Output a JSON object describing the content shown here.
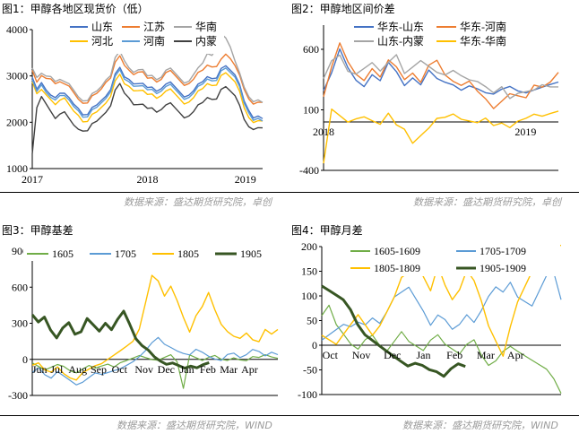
{
  "panels": [
    {
      "title": "图1：甲醇各地区现货价（低）",
      "source": "数据来源：盛达期货研究院，卓创"
    },
    {
      "title": "图2：甲醇地区间价差",
      "source": "数据来源：盛达期货研究院，卓创"
    },
    {
      "title": "图3：甲醇基差",
      "source": "数据来源：盛达期货研究院，WIND"
    },
    {
      "title": "图4：甲醇月差",
      "source": "数据来源：盛达期货研究院，WIND"
    }
  ],
  "chart_data": [
    {
      "type": "line",
      "ylim": [
        1000,
        4000
      ],
      "yticks": [
        "1000",
        "2000",
        "3000",
        "4000"
      ],
      "xticks": [
        {
          "label": "2017",
          "t": 0
        },
        {
          "label": "2018",
          "t": 0.5
        },
        {
          "label": "2019",
          "t": 0.925
        }
      ],
      "legend": [
        "山东",
        "江苏",
        "华南",
        "河北",
        "河南",
        "内蒙"
      ],
      "legend_placement": "top",
      "series": [
        {
          "name": "山东",
          "color": "#4472c4",
          "values": [
            2950,
            2700,
            2850,
            2700,
            2600,
            2550,
            2650,
            2650,
            2550,
            2400,
            2300,
            2150,
            2150,
            2300,
            2350,
            2450,
            2550,
            2700,
            3050,
            3200,
            3000,
            2950,
            2850,
            2850,
            2850,
            2750,
            2750,
            2650,
            2700,
            2800,
            2850,
            2750,
            2650,
            2550,
            2600,
            2700,
            2850,
            2900,
            3000,
            2950,
            2950,
            3150,
            3200,
            3100,
            3000,
            2800,
            2450,
            2250,
            2100,
            2150,
            2100
          ]
        },
        {
          "name": "江苏",
          "color": "#ed7d31",
          "values": [
            3100,
            2850,
            3000,
            2950,
            2950,
            2850,
            2900,
            2850,
            2800,
            2650,
            2500,
            2400,
            2400,
            2550,
            2600,
            2700,
            2850,
            2950,
            3300,
            3450,
            3250,
            3150,
            3050,
            3100,
            3100,
            2950,
            2950,
            2850,
            2900,
            3050,
            3100,
            3000,
            2900,
            2800,
            2850,
            2950,
            3100,
            3150,
            3250,
            3200,
            3200,
            3350,
            3450,
            3350,
            3200,
            3000,
            2700,
            2500,
            2400,
            2450,
            2450
          ]
        },
        {
          "name": "华南",
          "color": "#a5a5a5",
          "values": [
            3150,
            2950,
            3050,
            3000,
            3000,
            2900,
            2950,
            2900,
            2850,
            2700,
            2550,
            2450,
            2450,
            2600,
            2650,
            2750,
            2900,
            3000,
            3400,
            3550,
            3350,
            3200,
            3100,
            3150,
            3150,
            3000,
            3000,
            2900,
            2950,
            3100,
            3150,
            3050,
            2950,
            2850,
            2900,
            3050,
            3200,
            3300,
            3500,
            3450,
            3600,
            3900,
            3800,
            3600,
            3300,
            3050,
            2750,
            2550,
            2450,
            2500,
            2450
          ]
        },
        {
          "name": "河北",
          "color": "#ffc000",
          "values": [
            2850,
            2600,
            2700,
            2600,
            2500,
            2400,
            2500,
            2550,
            2400,
            2250,
            2150,
            2000,
            2000,
            2150,
            2200,
            2300,
            2400,
            2550,
            2900,
            3050,
            2850,
            2800,
            2700,
            2700,
            2700,
            2600,
            2600,
            2500,
            2550,
            2650,
            2700,
            2600,
            2500,
            2400,
            2450,
            2550,
            2700,
            2750,
            2850,
            2800,
            2800,
            3000,
            3050,
            2950,
            2850,
            2650,
            2300,
            2100,
            2000,
            2050,
            2050
          ]
        },
        {
          "name": "河南",
          "color": "#5b9bd5",
          "values": [
            2900,
            2650,
            2800,
            2650,
            2550,
            2500,
            2600,
            2600,
            2500,
            2350,
            2250,
            2100,
            2100,
            2250,
            2300,
            2400,
            2500,
            2650,
            3000,
            3150,
            2950,
            2900,
            2800,
            2800,
            2800,
            2700,
            2700,
            2600,
            2650,
            2750,
            2800,
            2700,
            2600,
            2500,
            2550,
            2650,
            2800,
            2850,
            2950,
            2900,
            2900,
            3100,
            3150,
            3050,
            2950,
            2750,
            2400,
            2200,
            2050,
            2100,
            2050
          ]
        },
        {
          "name": "内蒙",
          "color": "#404040",
          "values": [
            1300,
            2300,
            2550,
            2400,
            2250,
            2100,
            2200,
            2250,
            2100,
            1950,
            1850,
            1800,
            1800,
            1950,
            2000,
            2100,
            2200,
            2350,
            2700,
            2850,
            2650,
            2550,
            2400,
            2400,
            2400,
            2300,
            2300,
            2200,
            2250,
            2350,
            2400,
            2300,
            2200,
            2100,
            2150,
            2250,
            2400,
            2450,
            2550,
            2500,
            2500,
            2700,
            2750,
            2650,
            2550,
            2350,
            2050,
            1900,
            1850,
            1900,
            1900
          ]
        }
      ]
    },
    {
      "type": "line",
      "ylim": [
        -400,
        800
      ],
      "yticks": [
        "-400",
        "100",
        "600"
      ],
      "xticks": [
        {
          "label": "2018",
          "t": 0
        },
        {
          "label": "2019",
          "t": 0.86
        }
      ],
      "legend": [
        "华东-山东",
        "华东-河南",
        "山东-内蒙",
        "华东-华南"
      ],
      "legend_placement": "top",
      "series": [
        {
          "name": "华东-山东",
          "color": "#4472c4",
          "values": [
            250,
            400,
            600,
            450,
            350,
            300,
            400,
            350,
            500,
            420,
            300,
            360,
            300,
            420,
            350,
            320,
            300,
            260,
            300,
            280,
            250,
            240,
            280,
            300,
            260,
            240,
            260,
            280,
            300,
            320
          ]
        },
        {
          "name": "华东-河南",
          "color": "#ed7d31",
          "values": [
            200,
            450,
            650,
            500,
            400,
            350,
            450,
            380,
            520,
            460,
            350,
            400,
            320,
            460,
            500,
            380,
            330,
            300,
            340,
            260,
            200,
            120,
            180,
            240,
            220,
            200,
            300,
            280,
            320,
            400
          ]
        },
        {
          "name": "山东-内蒙",
          "color": "#a5a5a5",
          "values": [
            350,
            500,
            550,
            420,
            400,
            450,
            500,
            430,
            500,
            560,
            400,
            450,
            500,
            450,
            400,
            380,
            420,
            380,
            350,
            340,
            300,
            250,
            300,
            200,
            240,
            250,
            260,
            300,
            280,
            280
          ]
        },
        {
          "name": "华东-华南",
          "color": "#ffc000",
          "values": [
            -350,
            100,
            50,
            0,
            30,
            50,
            20,
            -10,
            80,
            -20,
            -60,
            -180,
            -120,
            -60,
            20,
            30,
            60,
            20,
            10,
            0,
            40,
            -20,
            0,
            -40,
            10,
            30,
            60,
            40,
            60,
            80
          ]
        }
      ]
    },
    {
      "type": "line",
      "ylim": [
        -300,
        900
      ],
      "yticks": [
        "-300",
        "0",
        "300",
        "600",
        "900"
      ],
      "xticks": [
        {
          "label": "Jun",
          "t": 0.03
        },
        {
          "label": "Jul",
          "t": 0.1
        },
        {
          "label": "Aug",
          "t": 0.185
        },
        {
          "label": "Sep",
          "t": 0.27
        },
        {
          "label": "Oct",
          "t": 0.355
        },
        {
          "label": "Nov",
          "t": 0.455
        },
        {
          "label": "Dec",
          "t": 0.545
        },
        {
          "label": "Jan",
          "t": 0.63
        },
        {
          "label": "Feb",
          "t": 0.715
        },
        {
          "label": "Mar",
          "t": 0.8
        },
        {
          "label": "Apr",
          "t": 0.885
        }
      ],
      "legend": [
        "1605",
        "1705",
        "1805",
        "1905"
      ],
      "legend_placement": "top",
      "series": [
        {
          "name": "1605",
          "color": "#70ad47",
          "width": 1.2,
          "values": [
            -20,
            -50,
            -80,
            -60,
            -40,
            -60,
            -100,
            -120,
            -90,
            -60,
            -80,
            -60,
            -40,
            -60,
            -20,
            0,
            20,
            40,
            20,
            0,
            -10,
            10,
            30,
            -30,
            -250,
            30,
            10,
            -10,
            20,
            40,
            10,
            0,
            20,
            0,
            -10,
            20,
            10,
            30,
            10,
            0
          ]
        },
        {
          "name": "1705",
          "color": "#5b9bd5",
          "width": 1.2,
          "values": [
            -100,
            -60,
            -120,
            -150,
            -100,
            -140,
            -180,
            -220,
            -200,
            -160,
            -120,
            -130,
            -110,
            -90,
            -70,
            -40,
            -10,
            30,
            80,
            140,
            180,
            120,
            90,
            60,
            40,
            30,
            80,
            60,
            30,
            10,
            0,
            50,
            60,
            20,
            40,
            80,
            60,
            20,
            50,
            30
          ]
        },
        {
          "name": "1805",
          "color": "#ffc000",
          "width": 1.4,
          "values": [
            -40,
            -20,
            -80,
            -100,
            -60,
            -120,
            -160,
            -180,
            -120,
            -90,
            -60,
            -40,
            0,
            40,
            80,
            120,
            160,
            260,
            480,
            700,
            650,
            520,
            600,
            480,
            340,
            220,
            360,
            440,
            560,
            420,
            300,
            240,
            200,
            180,
            220,
            160,
            140,
            240,
            200,
            240
          ]
        },
        {
          "name": "1905",
          "color": "#375623",
          "width": 3,
          "values": [
            380,
            320,
            360,
            250,
            180,
            260,
            300,
            200,
            220,
            330,
            280,
            230,
            300,
            250,
            340,
            410,
            300,
            180,
            120,
            80,
            20,
            -20,
            -50,
            -40,
            -60,
            -80,
            -60,
            -70,
            -40,
            -20
          ]
        }
      ]
    },
    {
      "type": "line",
      "ylim": [
        -100,
        200
      ],
      "yticks": [
        "-100",
        "-50",
        "0",
        "50",
        "100",
        "150",
        "200"
      ],
      "xticks": [
        {
          "label": "Oct",
          "t": 0.035
        },
        {
          "label": "Nov",
          "t": 0.165
        },
        {
          "label": "Dec",
          "t": 0.295
        },
        {
          "label": "Jan",
          "t": 0.425
        },
        {
          "label": "Feb",
          "t": 0.555
        },
        {
          "label": "Mar",
          "t": 0.685
        },
        {
          "label": "Apr",
          "t": 0.81
        }
      ],
      "legend": [
        "1605-1609",
        "1705-1709",
        "1805-1809",
        "1905-1909"
      ],
      "legend_placement": "top",
      "series": [
        {
          "name": "1605-1609",
          "color": "#70ad47",
          "width": 1.2,
          "values": [
            60,
            80,
            40,
            20,
            0,
            -10,
            10,
            20,
            0,
            -10,
            10,
            30,
            10,
            0,
            -10,
            10,
            20,
            0,
            -10,
            -20,
            0,
            10,
            -20,
            -40,
            -30,
            -10,
            0,
            -10,
            -20,
            -30,
            -40,
            -50,
            -70,
            -100
          ]
        },
        {
          "name": "1705-1709",
          "color": "#5b9bd5",
          "width": 1.2,
          "values": [
            10,
            20,
            30,
            40,
            35,
            45,
            40,
            55,
            45,
            70,
            100,
            110,
            120,
            95,
            70,
            40,
            60,
            50,
            30,
            40,
            60,
            45,
            70,
            100,
            120,
            110,
            130,
            100,
            90,
            80,
            110,
            140,
            145,
            90
          ]
        },
        {
          "name": "1805-1809",
          "color": "#ffc000",
          "width": 1.4,
          "values": [
            20,
            10,
            0,
            20,
            40,
            60,
            40,
            20,
            40,
            70,
            100,
            140,
            150,
            170,
            140,
            110,
            160,
            120,
            90,
            110,
            150,
            130,
            90,
            40,
            10,
            -20,
            40,
            90,
            120,
            150,
            170,
            180,
            200,
            200
          ]
        },
        {
          "name": "1905-1909",
          "color": "#375623",
          "width": 3,
          "values": [
            120,
            110,
            100,
            90,
            70,
            40,
            20,
            10,
            0,
            -10,
            -20,
            -30,
            -40,
            -35,
            -40,
            -50,
            -55,
            -65,
            -50,
            -40,
            -45
          ]
        }
      ]
    }
  ]
}
